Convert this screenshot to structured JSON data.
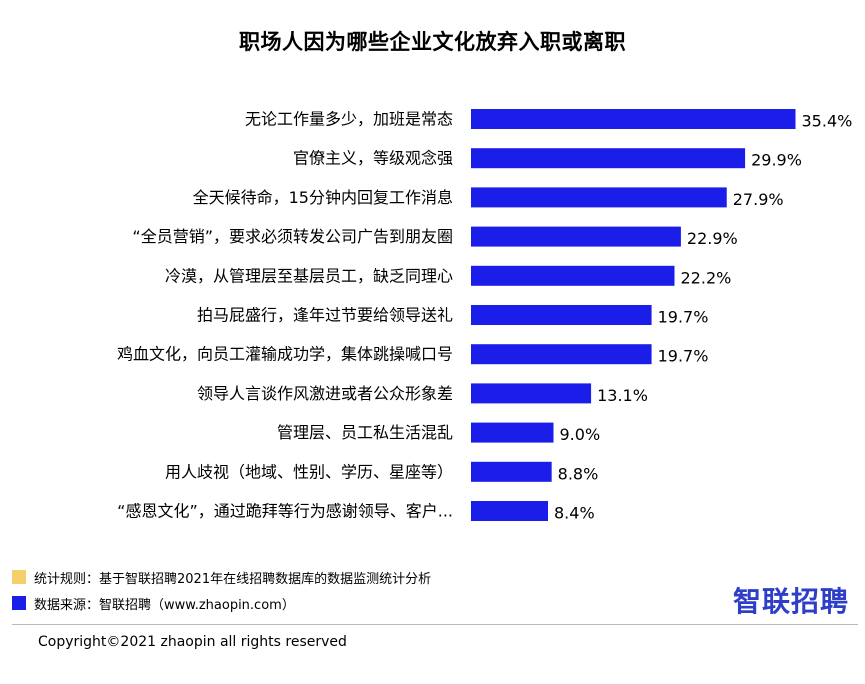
{
  "chart_data": {
    "type": "bar",
    "orientation": "horizontal",
    "title": "职场人因为哪些企业文化放弃入职或离职",
    "categories": [
      "无论工作量多少，加班是常态",
      "官僚主义，等级观念强",
      "全天候待命，15分钟内回复工作消息",
      "“全员营销”，要求必须转发公司广告到朋友圈",
      "冷漠，从管理层至基层员工，缺乏同理心",
      "拍马屁盛行，逢年过节要给领导送礼",
      "鸡血文化，向员工灌输成功学，集体跳操喊口号",
      "领导人言谈作风激进或者公众形象差",
      "管理层、员工私生活混乱",
      "用人歧视（地域、性别、学历、星座等）",
      "“感恩文化”，通过跪拜等行为感谢领导、客户..."
    ],
    "values": [
      35.4,
      29.9,
      27.9,
      22.9,
      22.2,
      19.7,
      19.7,
      13.1,
      9.0,
      8.8,
      8.4
    ],
    "value_labels": [
      "35.4%",
      "29.9%",
      "27.9%",
      "22.9%",
      "22.2%",
      "19.7%",
      "19.7%",
      "13.1%",
      "9.0%",
      "8.8%",
      "8.4%"
    ],
    "xlim": [
      0,
      36
    ],
    "grid": false,
    "bar_color": "#1b1ee8"
  },
  "notes": [
    {
      "text": "统计规则：基于智联招聘2021年在线招聘数据库的数据监测统计分析",
      "color": "#f5cf6b"
    },
    {
      "text": "数据来源：智联招聘（www.zhaopin.com）",
      "color": "#1b1ee8"
    }
  ],
  "logo": {
    "text": "智联招聘",
    "color": "#2e3ec8"
  },
  "copyright": "Copyright©2021 zhaopin  all rights reserved"
}
